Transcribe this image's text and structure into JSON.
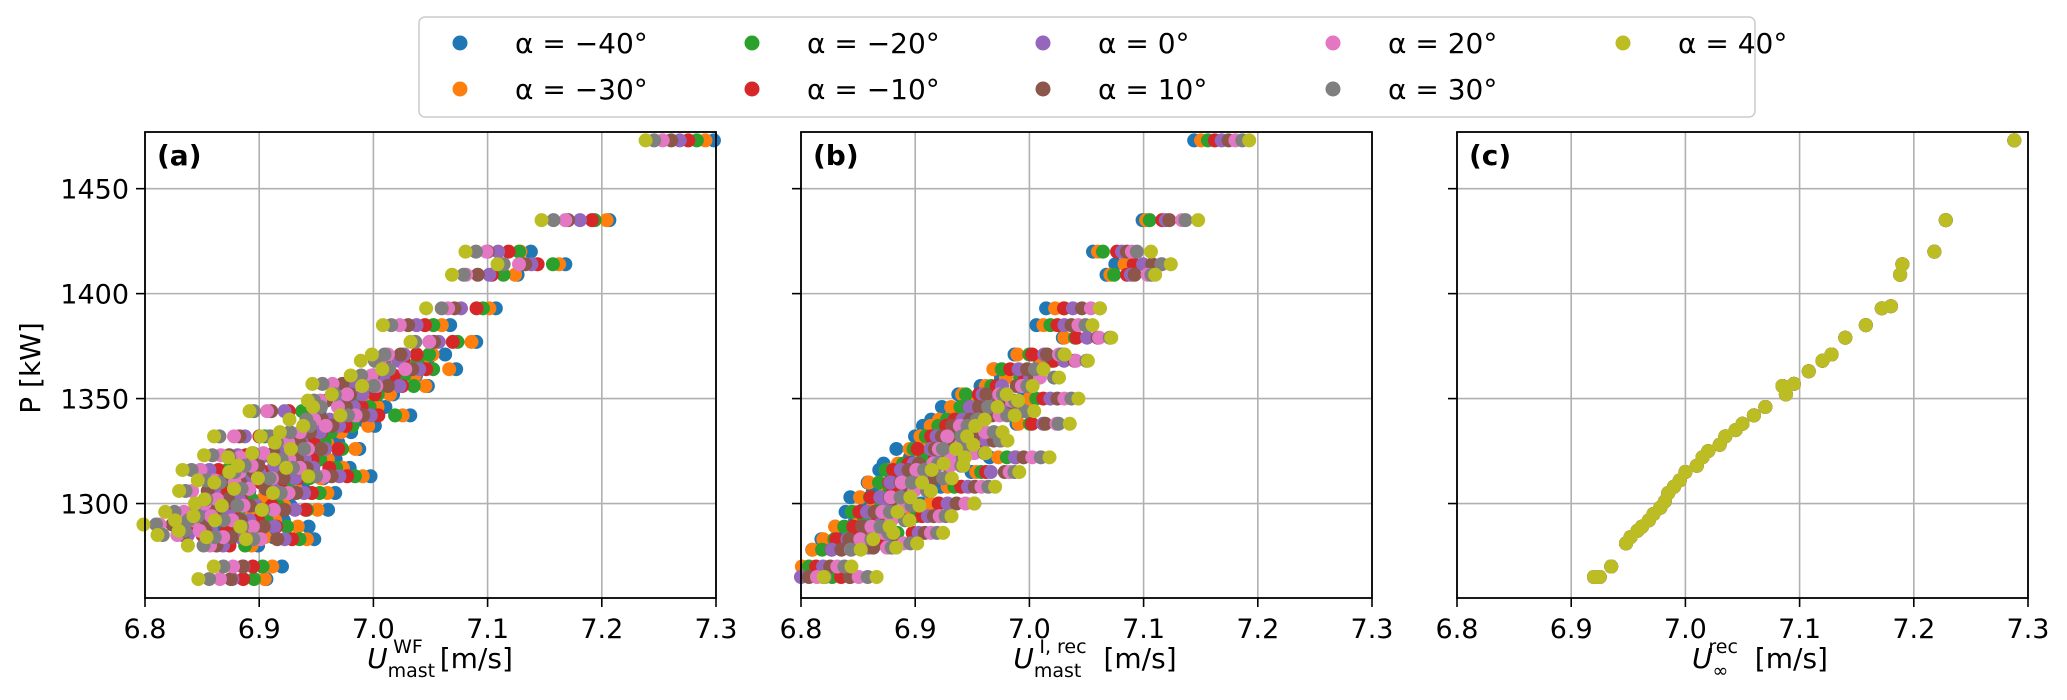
{
  "legend": [
    {
      "label": "α = −40°",
      "color": "#1f77b4"
    },
    {
      "label": "α = −30°",
      "color": "#ff7f0e"
    },
    {
      "label": "α = −20°",
      "color": "#2ca02c"
    },
    {
      "label": "α = −10°",
      "color": "#d62728"
    },
    {
      "label": "α = 0°",
      "color": "#9467bd"
    },
    {
      "label": "α = 10°",
      "color": "#8c564b"
    },
    {
      "label": "α = 20°",
      "color": "#e377c2"
    },
    {
      "label": "α = 30°",
      "color": "#7f7f7f"
    },
    {
      "label": "α = 40°",
      "color": "#bcbd22"
    }
  ],
  "ylabel": "P [kW]",
  "ytick_labels": [
    "1300",
    "1350",
    "1400",
    "1450"
  ],
  "xtick_labels": [
    "6.8",
    "6.9",
    "7.0",
    "7.1",
    "7.2",
    "7.3"
  ],
  "chart_data": [
    {
      "type": "scatter",
      "panel_label": "(a)",
      "xlabel_main": "U",
      "xlabel_sub": "mast",
      "xlabel_sup": "WF",
      "xlabel_unit": " [m/s]",
      "xlim": [
        6.8,
        7.3
      ],
      "ylim": [
        1255,
        1477
      ],
      "xticks": [
        6.8,
        6.9,
        7.0,
        7.1,
        7.2,
        7.3
      ],
      "yticks": [
        1300,
        1350,
        1400,
        1450
      ],
      "shift_per_series": -0.0075,
      "spread": 0.004,
      "series_names": [
        "α = −40°",
        "α = −30°",
        "α = −20°",
        "α = −10°",
        "α = 0°",
        "α = 10°",
        "α = 20°",
        "α = 30°",
        "α = 40°"
      ],
      "base_points": [
        [
          7.27,
          1473
        ],
        [
          7.18,
          1435
        ],
        [
          7.11,
          1420
        ],
        [
          7.14,
          1414
        ],
        [
          7.1,
          1409
        ],
        [
          7.08,
          1393
        ],
        [
          7.04,
          1385
        ],
        [
          7.06,
          1377
        ],
        [
          7.03,
          1371
        ],
        [
          7.02,
          1368
        ],
        [
          7.04,
          1364
        ],
        [
          7.01,
          1361
        ],
        [
          6.98,
          1357
        ],
        [
          7.02,
          1356
        ],
        [
          6.99,
          1352
        ],
        [
          6.97,
          1349
        ],
        [
          6.98,
          1346
        ],
        [
          7.0,
          1342
        ],
        [
          6.96,
          1340
        ],
        [
          6.97,
          1337
        ],
        [
          6.95,
          1334
        ],
        [
          6.93,
          1332
        ],
        [
          6.94,
          1329
        ],
        [
          6.96,
          1326
        ],
        [
          6.92,
          1324
        ],
        [
          6.94,
          1321
        ],
        [
          6.91,
          1318
        ],
        [
          6.9,
          1315
        ],
        [
          6.93,
          1312
        ],
        [
          6.89,
          1310
        ],
        [
          6.91,
          1307
        ],
        [
          6.94,
          1305
        ],
        [
          6.88,
          1302
        ],
        [
          6.9,
          1299
        ],
        [
          6.93,
          1297
        ],
        [
          6.87,
          1294
        ],
        [
          6.89,
          1292
        ],
        [
          6.91,
          1289
        ],
        [
          6.86,
          1287
        ],
        [
          6.88,
          1284
        ],
        [
          6.92,
          1283
        ],
        [
          6.87,
          1280
        ],
        [
          6.85,
          1296
        ],
        [
          6.87,
          1300
        ],
        [
          6.86,
          1306
        ],
        [
          6.88,
          1311
        ],
        [
          6.9,
          1322
        ],
        [
          6.95,
          1317
        ],
        [
          6.97,
          1313
        ],
        [
          6.92,
          1344
        ],
        [
          6.89,
          1332
        ],
        [
          6.88,
          1323
        ],
        [
          6.84,
          1285
        ],
        [
          6.86,
          1292
        ],
        [
          6.83,
          1290
        ],
        [
          6.89,
          1270
        ],
        [
          6.88,
          1264
        ],
        [
          6.86,
          1316
        ]
      ]
    },
    {
      "type": "scatter",
      "panel_label": "(b)",
      "xlabel_main": "U",
      "xlabel_sub": "mast",
      "xlabel_sup": "I, rec",
      "xlabel_unit": " [m/s]",
      "xlim": [
        6.8,
        7.3
      ],
      "ylim": [
        1255,
        1477
      ],
      "xticks": [
        6.8,
        6.9,
        7.0,
        7.1,
        7.2,
        7.3
      ],
      "yticks": [
        1300,
        1350,
        1400,
        1450
      ],
      "shift_per_series": 0.006,
      "spread": 0.004,
      "series_names": [
        "α = −40°",
        "α = −30°",
        "α = −20°",
        "α = −10°",
        "α = 0°",
        "α = 10°",
        "α = 20°",
        "α = 30°",
        "α = 40°"
      ],
      "base_points": [
        [
          7.17,
          1473
        ],
        [
          7.12,
          1435
        ],
        [
          7.08,
          1420
        ],
        [
          7.1,
          1414
        ],
        [
          7.09,
          1409
        ],
        [
          7.04,
          1393
        ],
        [
          7.03,
          1385
        ],
        [
          7.05,
          1379
        ],
        [
          7.01,
          1371
        ],
        [
          7.03,
          1368
        ],
        [
          6.99,
          1364
        ],
        [
          7.0,
          1360
        ],
        [
          6.98,
          1356
        ],
        [
          6.96,
          1352
        ],
        [
          6.97,
          1349
        ],
        [
          6.95,
          1346
        ],
        [
          6.96,
          1342
        ],
        [
          6.94,
          1340
        ],
        [
          6.93,
          1337
        ],
        [
          6.95,
          1334
        ],
        [
          6.92,
          1332
        ],
        [
          6.93,
          1328
        ],
        [
          6.91,
          1326
        ],
        [
          6.92,
          1322
        ],
        [
          6.9,
          1319
        ],
        [
          6.89,
          1316
        ],
        [
          6.91,
          1312
        ],
        [
          6.88,
          1310
        ],
        [
          6.89,
          1306
        ],
        [
          6.87,
          1303
        ],
        [
          6.88,
          1299
        ],
        [
          6.86,
          1296
        ],
        [
          6.87,
          1292
        ],
        [
          6.85,
          1289
        ],
        [
          6.86,
          1286
        ],
        [
          6.84,
          1283
        ],
        [
          6.88,
          1281
        ],
        [
          6.86,
          1279
        ],
        [
          6.83,
          1278
        ],
        [
          6.82,
          1270
        ],
        [
          6.8,
          1265
        ],
        [
          6.84,
          1265
        ],
        [
          6.9,
          1286
        ],
        [
          6.91,
          1294
        ],
        [
          6.93,
          1300
        ],
        [
          6.95,
          1308
        ],
        [
          6.97,
          1315
        ],
        [
          6.99,
          1322
        ],
        [
          6.96,
          1330
        ],
        [
          7.01,
          1338
        ],
        [
          6.98,
          1344
        ],
        [
          7.02,
          1350
        ],
        [
          6.94,
          1324
        ],
        [
          6.92,
          1318
        ]
      ]
    },
    {
      "type": "scatter",
      "panel_label": "(c)",
      "xlabel_main": "U",
      "xlabel_sub": "∞",
      "xlabel_sup": "rec",
      "xlabel_unit": " [m/s]",
      "xlim": [
        6.8,
        7.3
      ],
      "ylim": [
        1255,
        1477
      ],
      "xticks": [
        6.8,
        6.9,
        7.0,
        7.1,
        7.2,
        7.3
      ],
      "yticks": [
        1300,
        1350,
        1400,
        1450
      ],
      "shift_per_series": 0.0,
      "spread": 0.0,
      "series_names": [
        "α = −40°",
        "α = −30°",
        "α = −20°",
        "α = −10°",
        "α = 0°",
        "α = 10°",
        "α = 20°",
        "α = 30°",
        "α = 40°"
      ],
      "base_points": [
        [
          7.288,
          1473
        ],
        [
          7.228,
          1435
        ],
        [
          7.218,
          1420
        ],
        [
          7.19,
          1414
        ],
        [
          7.188,
          1409
        ],
        [
          7.172,
          1393
        ],
        [
          7.158,
          1385
        ],
        [
          7.14,
          1379
        ],
        [
          7.128,
          1371
        ],
        [
          7.12,
          1368
        ],
        [
          7.108,
          1363
        ],
        [
          7.095,
          1357
        ],
        [
          7.088,
          1352
        ],
        [
          7.085,
          1356
        ],
        [
          7.07,
          1346
        ],
        [
          7.06,
          1342
        ],
        [
          7.05,
          1338
        ],
        [
          7.044,
          1335
        ],
        [
          7.035,
          1332
        ],
        [
          7.03,
          1328
        ],
        [
          7.02,
          1325
        ],
        [
          7.015,
          1322
        ],
        [
          7.01,
          1318
        ],
        [
          7.0,
          1315
        ],
        [
          6.995,
          1311
        ],
        [
          6.99,
          1308
        ],
        [
          6.985,
          1305
        ],
        [
          6.982,
          1301
        ],
        [
          6.978,
          1298
        ],
        [
          6.972,
          1295
        ],
        [
          6.968,
          1292
        ],
        [
          6.962,
          1289
        ],
        [
          6.958,
          1287
        ],
        [
          6.952,
          1284
        ],
        [
          6.948,
          1281
        ],
        [
          6.935,
          1270
        ],
        [
          6.92,
          1265
        ],
        [
          6.925,
          1265
        ],
        [
          7.18,
          1394
        ]
      ]
    }
  ]
}
